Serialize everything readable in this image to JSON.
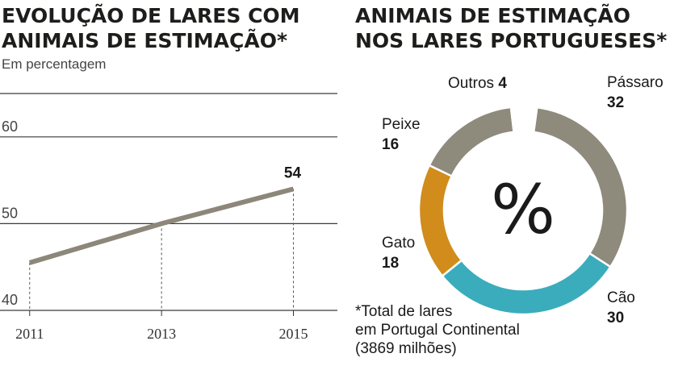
{
  "left_title": [
    "EVOLUÇÃO DE LARES COM",
    "ANIMAIS DE ESTIMAÇÃO*"
  ],
  "left_subtitle": "Em percentagem",
  "right_title": [
    "ANIMAIS DE ESTIMAÇÃO",
    "NOS LARES PORTUGUESES*"
  ],
  "center_symbol": "%",
  "footnote": [
    "*Total de lares",
    "em Portugal Continental",
    "(3869 milhões)"
  ],
  "colors": {
    "line": "#8c877a",
    "grid": "#3a3a3a",
    "passaro": "#8e8a7c",
    "cao": "#3aacbc",
    "gato": "#d18c1c",
    "peixe": "#8e8a7c",
    "outros": "#ffffff"
  },
  "chart_data": [
    {
      "type": "line",
      "title": "EVOLUÇÃO DE LARES COM ANIMAIS DE ESTIMAÇÃO*",
      "subtitle": "Em percentagem",
      "x": [
        2011,
        2013,
        2015
      ],
      "xtick_labels": [
        "2011",
        "2013",
        "2015"
      ],
      "series": [
        {
          "values": [
            45.5,
            50,
            54
          ]
        }
      ],
      "ylim": [
        40,
        65
      ],
      "yticks": [
        40,
        50,
        60
      ],
      "ytick_labels": [
        "40",
        "50",
        "60"
      ],
      "data_labels": [
        {
          "x": 2015,
          "text": "54"
        }
      ],
      "grid": true
    },
    {
      "type": "pie",
      "donut": true,
      "title": "ANIMAIS DE ESTIMAÇÃO NOS LARES PORTUGUESES*",
      "slices": [
        {
          "label": "Pássaro",
          "value": 32,
          "value_label": "32",
          "color": "#8e8a7c"
        },
        {
          "label": "Cão",
          "value": 30,
          "value_label": "30",
          "color": "#3aacbc"
        },
        {
          "label": "Gato",
          "value": 18,
          "value_label": "18",
          "color": "#d18c1c"
        },
        {
          "label": "Peixe",
          "value": 16,
          "value_label": "16",
          "color": "#8e8a7c"
        },
        {
          "label": "Outros",
          "value": 4,
          "value_label": "4",
          "color": "#ffffff"
        }
      ]
    }
  ]
}
